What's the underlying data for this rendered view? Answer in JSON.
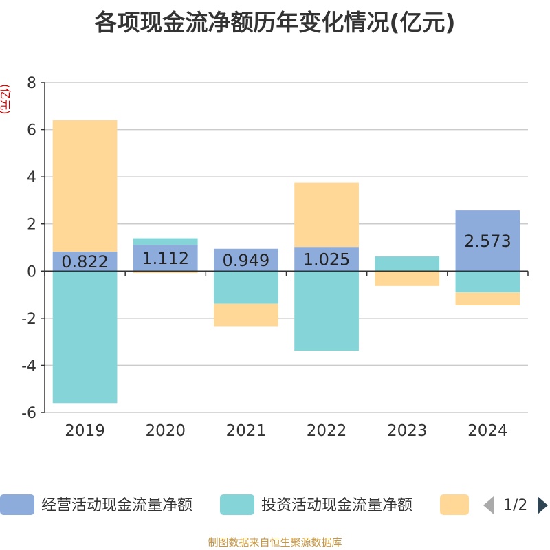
{
  "title": "各项现金流净额历年变化情况(亿元)",
  "footer": "制图数据来自恒生聚源数据库",
  "pager": "1/2",
  "chart_data": {
    "type": "bar",
    "stacked": true,
    "ylabel": "(亿元)",
    "ylim": [
      -6,
      8
    ],
    "yticks": [
      -6,
      -4,
      -2,
      0,
      2,
      4,
      6,
      8
    ],
    "grid": true,
    "legend_position": "bottom",
    "categories": [
      "2019",
      "2020",
      "2021",
      "2022",
      "2023",
      "2024"
    ],
    "series": [
      {
        "name": "经营活动现金流量净额",
        "color": "#8eacdb",
        "values": [
          0.822,
          1.112,
          0.949,
          1.025,
          -0.009,
          2.573
        ],
        "labels": [
          "0.822",
          "1.112",
          "0.949",
          "1.025",
          "",
          "2.573"
        ]
      },
      {
        "name": "投资活动现金流量净额",
        "color": "#85d5d8",
        "values": [
          -5.6,
          0.28,
          -1.38,
          -3.38,
          0.62,
          -0.9
        ]
      },
      {
        "name": "",
        "color": "#ffd897",
        "values": [
          5.58,
          -0.08,
          -0.96,
          2.73,
          -0.62,
          -0.55
        ]
      }
    ]
  }
}
